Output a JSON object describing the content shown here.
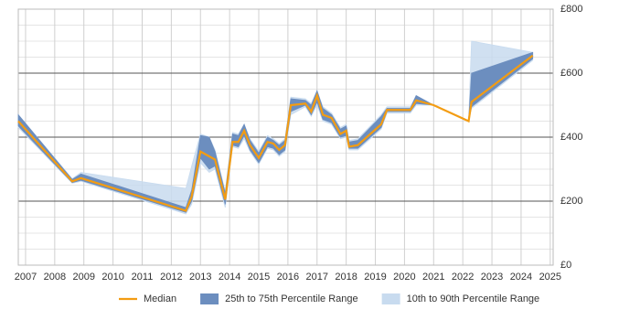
{
  "chart_data": {
    "type": "line-band",
    "x": [
      2006.75,
      2008.6,
      2008.9,
      2012.5,
      2012.7,
      2013.0,
      2013.3,
      2013.5,
      2013.85,
      2014.1,
      2014.3,
      2014.5,
      2014.7,
      2015.0,
      2015.3,
      2015.5,
      2015.7,
      2015.9,
      2016.1,
      2016.6,
      2016.8,
      2017.0,
      2017.2,
      2017.5,
      2017.8,
      2018.0,
      2018.1,
      2018.4,
      2019.2,
      2019.4,
      2020.2,
      2020.4,
      2021.0,
      2022.2,
      2022.3,
      2024.4
    ],
    "series": [
      {
        "name": "Median",
        "color": "#f39c12",
        "values": [
          450,
          262,
          272,
          170,
          215,
          355,
          340,
          330,
          205,
          385,
          385,
          420,
          375,
          335,
          385,
          380,
          360,
          375,
          500,
          505,
          480,
          530,
          470,
          460,
          410,
          420,
          370,
          375,
          440,
          485,
          485,
          515,
          500,
          450,
          510,
          655
        ]
      },
      {
        "name": "25th to 75th Percentile Range",
        "color": "#6c8ebf",
        "low": [
          435,
          258,
          265,
          165,
          200,
          335,
          300,
          310,
          190,
          375,
          370,
          405,
          360,
          320,
          370,
          365,
          345,
          360,
          480,
          500,
          470,
          510,
          455,
          445,
          400,
          405,
          365,
          365,
          430,
          480,
          480,
          505,
          500,
          450,
          495,
          645
        ],
        "high": [
          470,
          268,
          285,
          180,
          235,
          405,
          400,
          355,
          225,
          410,
          405,
          440,
          390,
          350,
          400,
          390,
          375,
          390,
          520,
          515,
          500,
          545,
          490,
          470,
          425,
          435,
          385,
          390,
          465,
          490,
          490,
          530,
          500,
          450,
          600,
          665
        ]
      },
      {
        "name": "10th to 90th Percentile Range",
        "color": "#c8dbef",
        "low": [
          430,
          256,
          262,
          160,
          190,
          320,
          290,
          300,
          180,
          370,
          365,
          395,
          355,
          315,
          365,
          360,
          340,
          355,
          470,
          495,
          465,
          500,
          450,
          440,
          395,
          400,
          360,
          360,
          425,
          475,
          475,
          500,
          500,
          450,
          490,
          640
        ],
        "high": [
          470,
          270,
          290,
          240,
          310,
          410,
          400,
          360,
          230,
          415,
          410,
          440,
          395,
          355,
          405,
          395,
          380,
          395,
          525,
          520,
          505,
          545,
          495,
          475,
          430,
          440,
          390,
          395,
          470,
          495,
          495,
          530,
          500,
          450,
          700,
          665
        ]
      }
    ],
    "xlim": [
      2006.75,
      2025.1
    ],
    "xticks": [
      2007,
      2008,
      2009,
      2010,
      2011,
      2012,
      2013,
      2014,
      2015,
      2016,
      2017,
      2018,
      2019,
      2020,
      2021,
      2022,
      2023,
      2024,
      2025
    ],
    "ylim": [
      0,
      800
    ],
    "yticks": [
      {
        "value": 0,
        "label": "£0"
      },
      {
        "value": 200,
        "label": "£200"
      },
      {
        "value": 400,
        "label": "£400"
      },
      {
        "value": 600,
        "label": "£600"
      },
      {
        "value": 800,
        "label": "£800"
      }
    ],
    "grid": true,
    "legend": "bottom"
  }
}
